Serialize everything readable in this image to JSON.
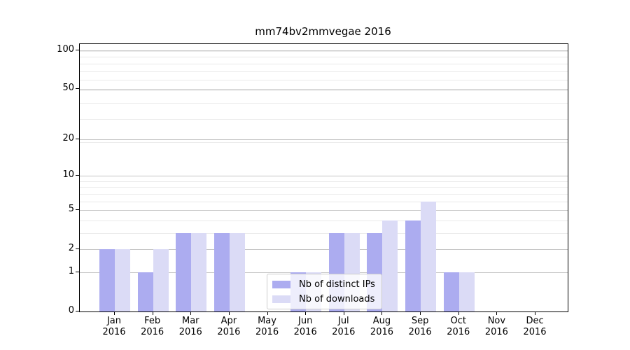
{
  "chart_data": {
    "type": "bar",
    "title": "mm74bv2mmvegae 2016",
    "categories": [
      "Jan 2016",
      "Feb 2016",
      "Mar 2016",
      "Apr 2016",
      "May 2016",
      "Jun 2016",
      "Jul 2016",
      "Aug 2016",
      "Sep 2016",
      "Oct 2016",
      "Nov 2016",
      "Dec 2016"
    ],
    "series": [
      {
        "name": "Nb of distinct IPs",
        "color": "#acacf0",
        "values": [
          2,
          1,
          3,
          3,
          0,
          1,
          3,
          3,
          4,
          1,
          0,
          0
        ]
      },
      {
        "name": "Nb of downloads",
        "color": "#dbdbf6",
        "values": [
          2,
          2,
          3,
          3,
          0,
          1,
          3,
          4,
          6,
          1,
          0,
          0
        ]
      }
    ],
    "xlabel": "",
    "ylabel": "",
    "yscale": "log1p",
    "yticks": [
      0,
      1,
      2,
      5,
      10,
      20,
      50,
      100
    ],
    "ylim": [
      0,
      112
    ],
    "grid": true,
    "legend_position": "lower center",
    "colors": {
      "grid_major": "#c4c4c4",
      "grid_minor": "#eaeaea",
      "axis": "#000000",
      "background": "#ffffff"
    }
  }
}
